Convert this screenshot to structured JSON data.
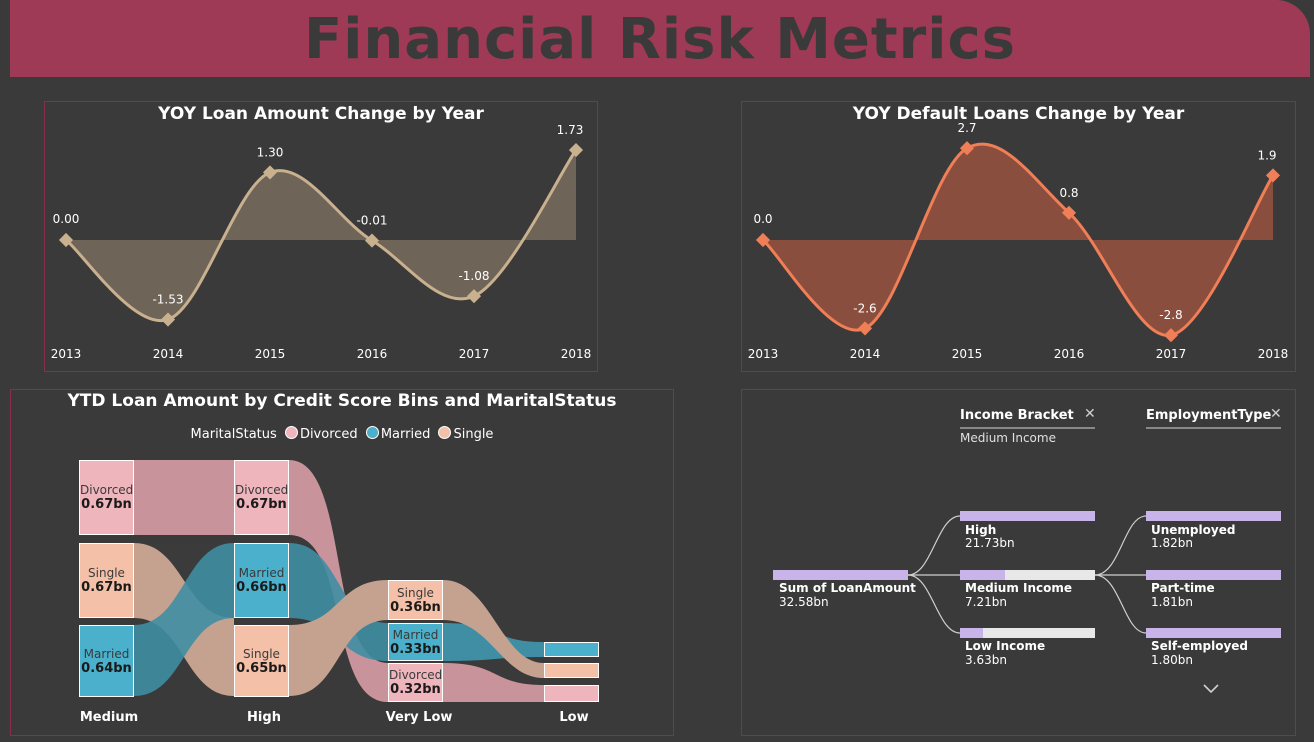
{
  "header": {
    "title": "Financial Risk Metrics"
  },
  "yoy_loan": {
    "title": "YOY Loan Amount Change by Year",
    "years": [
      "2013",
      "2014",
      "2015",
      "2016",
      "2017",
      "2018"
    ],
    "values": [
      0.0,
      -1.53,
      1.3,
      -0.01,
      -1.08,
      1.73
    ],
    "labels": [
      "0.00",
      "-1.53",
      "1.30",
      "-0.01",
      "-1.08",
      "1.73"
    ],
    "line_color": "#c9b08f",
    "fill_color": "#6e6457"
  },
  "yoy_default": {
    "title": "YOY Default Loans Change by Year",
    "years": [
      "2013",
      "2014",
      "2015",
      "2016",
      "2017",
      "2018"
    ],
    "values": [
      0.0,
      -2.6,
      2.7,
      0.8,
      -2.8,
      1.9
    ],
    "labels": [
      "0.0",
      "-2.6",
      "2.7",
      "0.8",
      "-2.8",
      "1.9"
    ],
    "line_color": "#f07e56",
    "fill_color": "#8a4e3e"
  },
  "sankey": {
    "title": "YTD Loan Amount by Credit Score Bins and MaritalStatus",
    "legend_title": "MaritalStatus",
    "legend": [
      {
        "name": "Divorced",
        "color": "#efb5bd"
      },
      {
        "name": "Married",
        "color": "#4ab0cb"
      },
      {
        "name": "Single",
        "color": "#f4c1a8"
      }
    ],
    "categories": [
      "Medium",
      "High",
      "Very Low",
      "Low"
    ],
    "nodes": {
      "medium_divorced": {
        "name": "Divorced",
        "value": "0.67bn"
      },
      "medium_single": {
        "name": "Single",
        "value": "0.67bn"
      },
      "medium_married": {
        "name": "Married",
        "value": "0.64bn"
      },
      "high_divorced": {
        "name": "Divorced",
        "value": "0.67bn"
      },
      "high_married": {
        "name": "Married",
        "value": "0.66bn"
      },
      "high_single": {
        "name": "Single",
        "value": "0.65bn"
      },
      "verylow_single": {
        "name": "Single",
        "value": "0.36bn"
      },
      "verylow_married": {
        "name": "Married",
        "value": "0.33bn"
      },
      "verylow_divorced": {
        "name": "Divorced",
        "value": "0.32bn"
      }
    }
  },
  "decomp_tree": {
    "level1": {
      "header": "Income Bracket",
      "selected": "Medium Income"
    },
    "level2": {
      "header": "EmploymentType"
    },
    "root": {
      "name": "Sum of LoanAmount",
      "value": "32.58bn",
      "fill": 1.0
    },
    "income": [
      {
        "name": "High",
        "value": "21.73bn",
        "fill": 1.0
      },
      {
        "name": "Medium Income",
        "value": "7.21bn",
        "fill": 0.33
      },
      {
        "name": "Low Income",
        "value": "3.63bn",
        "fill": 0.17
      }
    ],
    "employment": [
      {
        "name": "Unemployed",
        "value": "1.82bn",
        "fill": 1.0
      },
      {
        "name": "Part-time",
        "value": "1.81bn",
        "fill": 1.0
      },
      {
        "name": "Self-employed",
        "value": "1.80bn",
        "fill": 1.0
      }
    ],
    "bar_color": "#c8b4e8"
  }
}
